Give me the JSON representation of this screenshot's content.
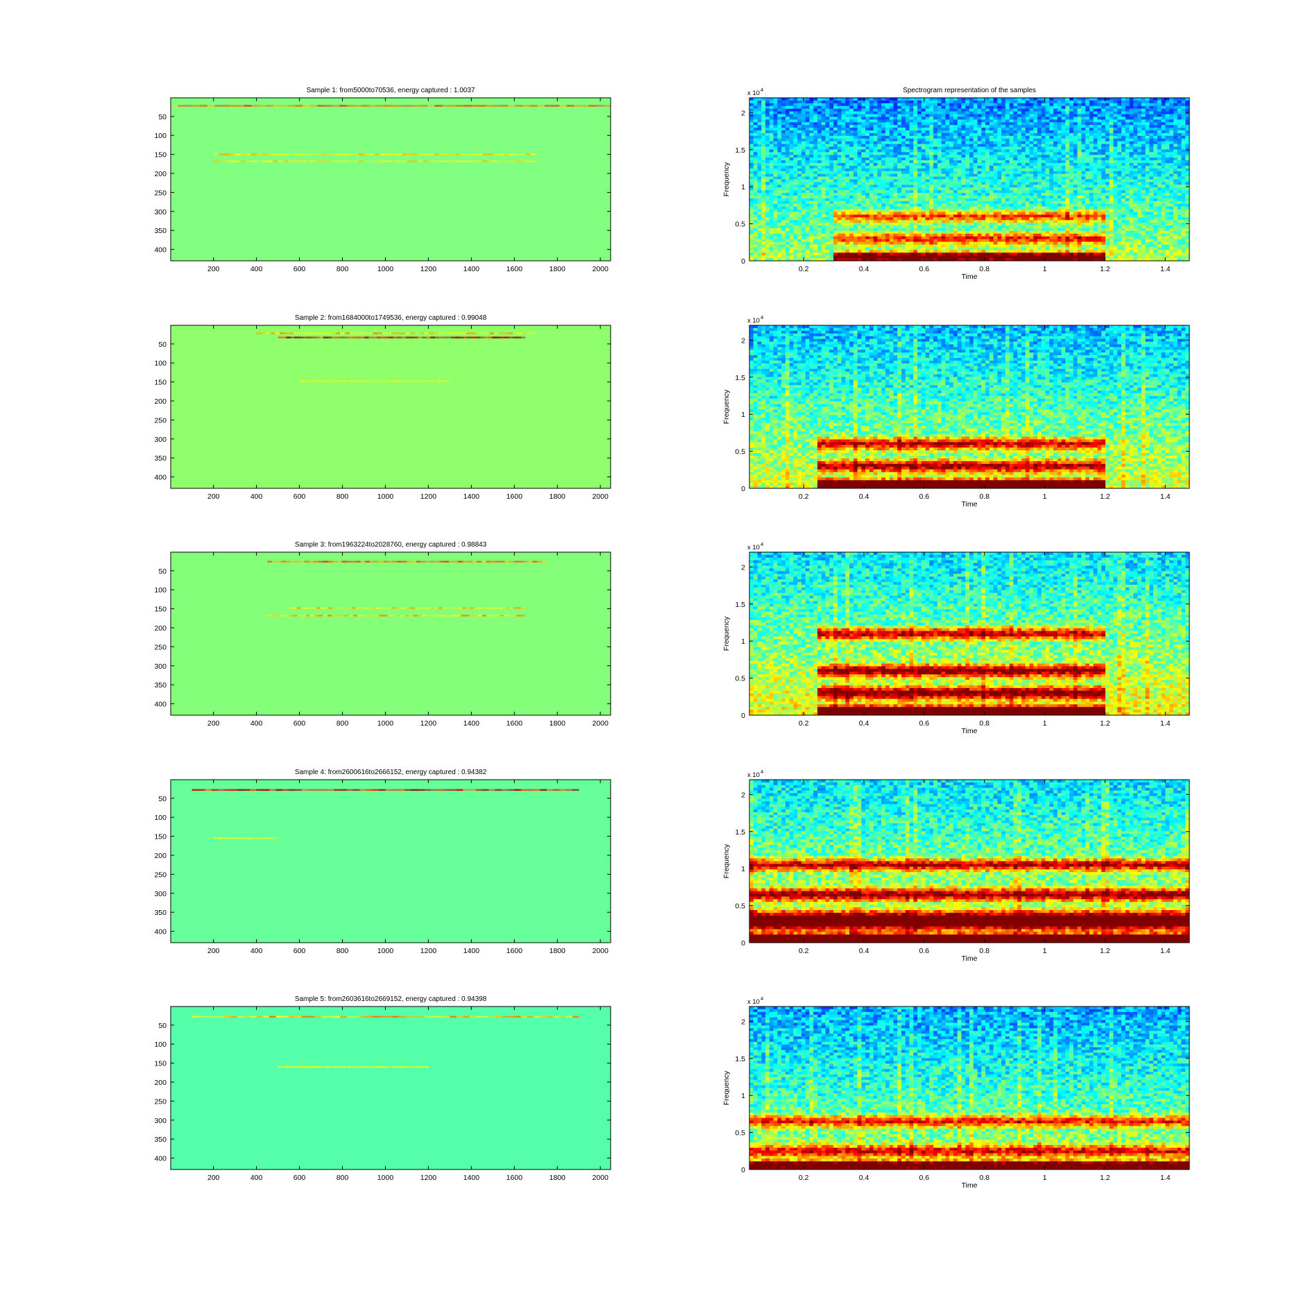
{
  "figure": {
    "left_column_title_prefix": "Sample",
    "right_column_title": "Spectrogram representation of the samples"
  },
  "chart_data": [
    {
      "type": "heatmap",
      "title": "Sample 1: from5000to70536, energy captured : 1.0037",
      "xlabel": "",
      "ylabel": "",
      "xlim": [
        1,
        2048
      ],
      "ylim": [
        1,
        430
      ],
      "y_reversed": true,
      "xticks": [
        200,
        400,
        600,
        800,
        1000,
        1200,
        1400,
        1600,
        1800,
        2000
      ],
      "yticks": [
        50,
        100,
        150,
        200,
        250,
        300,
        350,
        400
      ],
      "background_color": "#80ff80",
      "bands": [
        {
          "y": 22,
          "x_range": [
            1,
            2048
          ],
          "strength": 0.55
        },
        {
          "y": 150,
          "x_range": [
            200,
            1700
          ],
          "strength": 0.35
        },
        {
          "y": 168,
          "x_range": [
            200,
            1700
          ],
          "strength": 0.3
        }
      ]
    },
    {
      "type": "heatmap",
      "title": "Spectrogram representation of the samples",
      "xlabel": "Time",
      "ylabel": "Frequency",
      "y_multiplier": "x 10",
      "y_multiplier_exponent": "4",
      "xlim": [
        0.02,
        1.48
      ],
      "ylim": [
        0,
        2.2
      ],
      "xticks": [
        0.2,
        0.4,
        0.6,
        0.8,
        1,
        1.2,
        1.4
      ],
      "yticks": [
        0,
        0.5,
        1,
        1.5,
        2
      ],
      "intensity": 0.35,
      "active_range": [
        0.3,
        1.2
      ],
      "bands": [
        0.05,
        0.3,
        0.6
      ]
    },
    {
      "type": "heatmap",
      "title": "Sample 2: from1684000to1749536, energy captured : 0.99048",
      "xlabel": "",
      "ylabel": "",
      "xlim": [
        1,
        2048
      ],
      "ylim": [
        1,
        430
      ],
      "y_reversed": true,
      "xticks": [
        200,
        400,
        600,
        800,
        1000,
        1200,
        1400,
        1600,
        1800,
        2000
      ],
      "yticks": [
        50,
        100,
        150,
        200,
        250,
        300,
        350,
        400
      ],
      "background_color": "#90ff6c",
      "bands": [
        {
          "y": 33,
          "x_range": [
            500,
            1650
          ],
          "strength": 1.0
        },
        {
          "y": 22,
          "x_range": [
            400,
            1700
          ],
          "strength": 0.4
        },
        {
          "y": 148,
          "x_range": [
            600,
            1300
          ],
          "strength": 0.2
        }
      ]
    },
    {
      "type": "heatmap",
      "title": "",
      "xlabel": "Time",
      "ylabel": "Frequency",
      "y_multiplier": "x 10",
      "y_multiplier_exponent": "4",
      "xlim": [
        0.02,
        1.48
      ],
      "ylim": [
        0,
        2.2
      ],
      "xticks": [
        0.2,
        0.4,
        0.6,
        0.8,
        1,
        1.2,
        1.4
      ],
      "yticks": [
        0,
        0.5,
        1,
        1.5,
        2
      ],
      "intensity": 0.55,
      "active_range": [
        0.25,
        1.2
      ],
      "bands": [
        0.05,
        0.3,
        0.6
      ]
    },
    {
      "type": "heatmap",
      "title": "Sample 3: from1963224to2028760, energy captured : 0.98843",
      "xlabel": "",
      "ylabel": "",
      "xlim": [
        1,
        2048
      ],
      "ylim": [
        1,
        430
      ],
      "y_reversed": true,
      "xticks": [
        200,
        400,
        600,
        800,
        1000,
        1200,
        1400,
        1600,
        1800,
        2000
      ],
      "yticks": [
        50,
        100,
        150,
        200,
        250,
        300,
        350,
        400
      ],
      "background_color": "#84ff7a",
      "bands": [
        {
          "y": 26,
          "x_range": [
            450,
            1750
          ],
          "strength": 0.55
        },
        {
          "y": 148,
          "x_range": [
            550,
            1650
          ],
          "strength": 0.4
        },
        {
          "y": 168,
          "x_range": [
            450,
            1650
          ],
          "strength": 0.45
        }
      ]
    },
    {
      "type": "heatmap",
      "title": "",
      "xlabel": "Time",
      "ylabel": "Frequency",
      "y_multiplier": "x 10",
      "y_multiplier_exponent": "4",
      "xlim": [
        0.02,
        1.48
      ],
      "ylim": [
        0,
        2.2
      ],
      "xticks": [
        0.2,
        0.4,
        0.6,
        0.8,
        1,
        1.2,
        1.4
      ],
      "yticks": [
        0,
        0.5,
        1,
        1.5,
        2
      ],
      "intensity": 0.7,
      "active_range": [
        0.25,
        1.2
      ],
      "bands": [
        0.05,
        0.3,
        0.6,
        1.1
      ]
    },
    {
      "type": "heatmap",
      "title": "Sample 4: from2600616to2666152, energy captured : 0.94382",
      "xlabel": "",
      "ylabel": "",
      "xlim": [
        1,
        2048
      ],
      "ylim": [
        1,
        430
      ],
      "y_reversed": true,
      "xticks": [
        200,
        400,
        600,
        800,
        1000,
        1200,
        1400,
        1600,
        1800,
        2000
      ],
      "yticks": [
        50,
        100,
        150,
        200,
        250,
        300,
        350,
        400
      ],
      "background_color": "#66ff99",
      "bands": [
        {
          "y": 28,
          "x_range": [
            100,
            1900
          ],
          "strength": 0.95
        },
        {
          "y": 155,
          "x_range": [
            200,
            500
          ],
          "strength": 0.2
        }
      ]
    },
    {
      "type": "heatmap",
      "title": "",
      "xlabel": "Time",
      "ylabel": "Frequency",
      "y_multiplier": "x 10",
      "y_multiplier_exponent": "4",
      "xlim": [
        0.02,
        1.48
      ],
      "ylim": [
        0,
        2.2
      ],
      "xticks": [
        0.2,
        0.4,
        0.6,
        0.8,
        1,
        1.2,
        1.4
      ],
      "yticks": [
        0,
        0.5,
        1,
        1.5,
        2
      ],
      "intensity": 0.7,
      "active_range": [
        0.02,
        1.48
      ],
      "bands": [
        0.05,
        0.25,
        0.35,
        0.65,
        1.05
      ]
    },
    {
      "type": "heatmap",
      "title": "Sample 5: from2603616to2669152, energy captured : 0.94398",
      "xlabel": "",
      "ylabel": "",
      "xlim": [
        1,
        2048
      ],
      "ylim": [
        1,
        430
      ],
      "y_reversed": true,
      "xticks": [
        200,
        400,
        600,
        800,
        1000,
        1200,
        1400,
        1600,
        1800,
        2000
      ],
      "yticks": [
        50,
        100,
        150,
        200,
        250,
        300,
        350,
        400
      ],
      "background_color": "#55ffaa",
      "bands": [
        {
          "y": 28,
          "x_range": [
            100,
            1900
          ],
          "strength": 0.45
        },
        {
          "y": 160,
          "x_range": [
            500,
            1200
          ],
          "strength": 0.2
        }
      ]
    },
    {
      "type": "heatmap",
      "title": "",
      "xlabel": "Time",
      "ylabel": "Frequency",
      "y_multiplier": "x 10",
      "y_multiplier_exponent": "4",
      "xlim": [
        0.02,
        1.48
      ],
      "ylim": [
        0,
        2.2
      ],
      "xticks": [
        0.2,
        0.4,
        0.6,
        0.8,
        1,
        1.2,
        1.4
      ],
      "yticks": [
        0,
        0.5,
        1,
        1.5,
        2
      ],
      "intensity": 0.45,
      "active_range": [
        0.02,
        1.48
      ],
      "bands": [
        0.05,
        0.25,
        0.65
      ]
    }
  ]
}
